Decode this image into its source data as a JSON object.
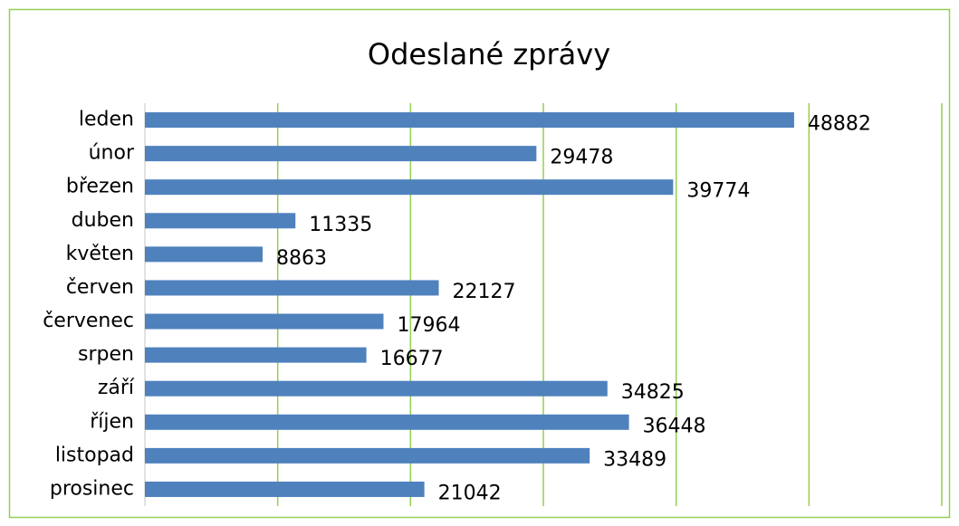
{
  "chart_data": {
    "type": "bar",
    "orientation": "horizontal",
    "title": "Odeslané zprávy",
    "categories": [
      "leden",
      "únor",
      "březen",
      "duben",
      "květen",
      "červen",
      "červenec",
      "srpen",
      "září",
      "říjen",
      "listopad",
      "prosinec"
    ],
    "values": [
      48882,
      29478,
      39774,
      11335,
      8863,
      22127,
      17964,
      16677,
      34825,
      36448,
      33489,
      21042
    ],
    "color": "#4f81bd",
    "grid_color": "#92d050",
    "xlim": [
      0,
      60000
    ],
    "xticks": [
      0,
      10000,
      20000,
      30000,
      40000,
      50000,
      60000
    ],
    "grid": true
  }
}
